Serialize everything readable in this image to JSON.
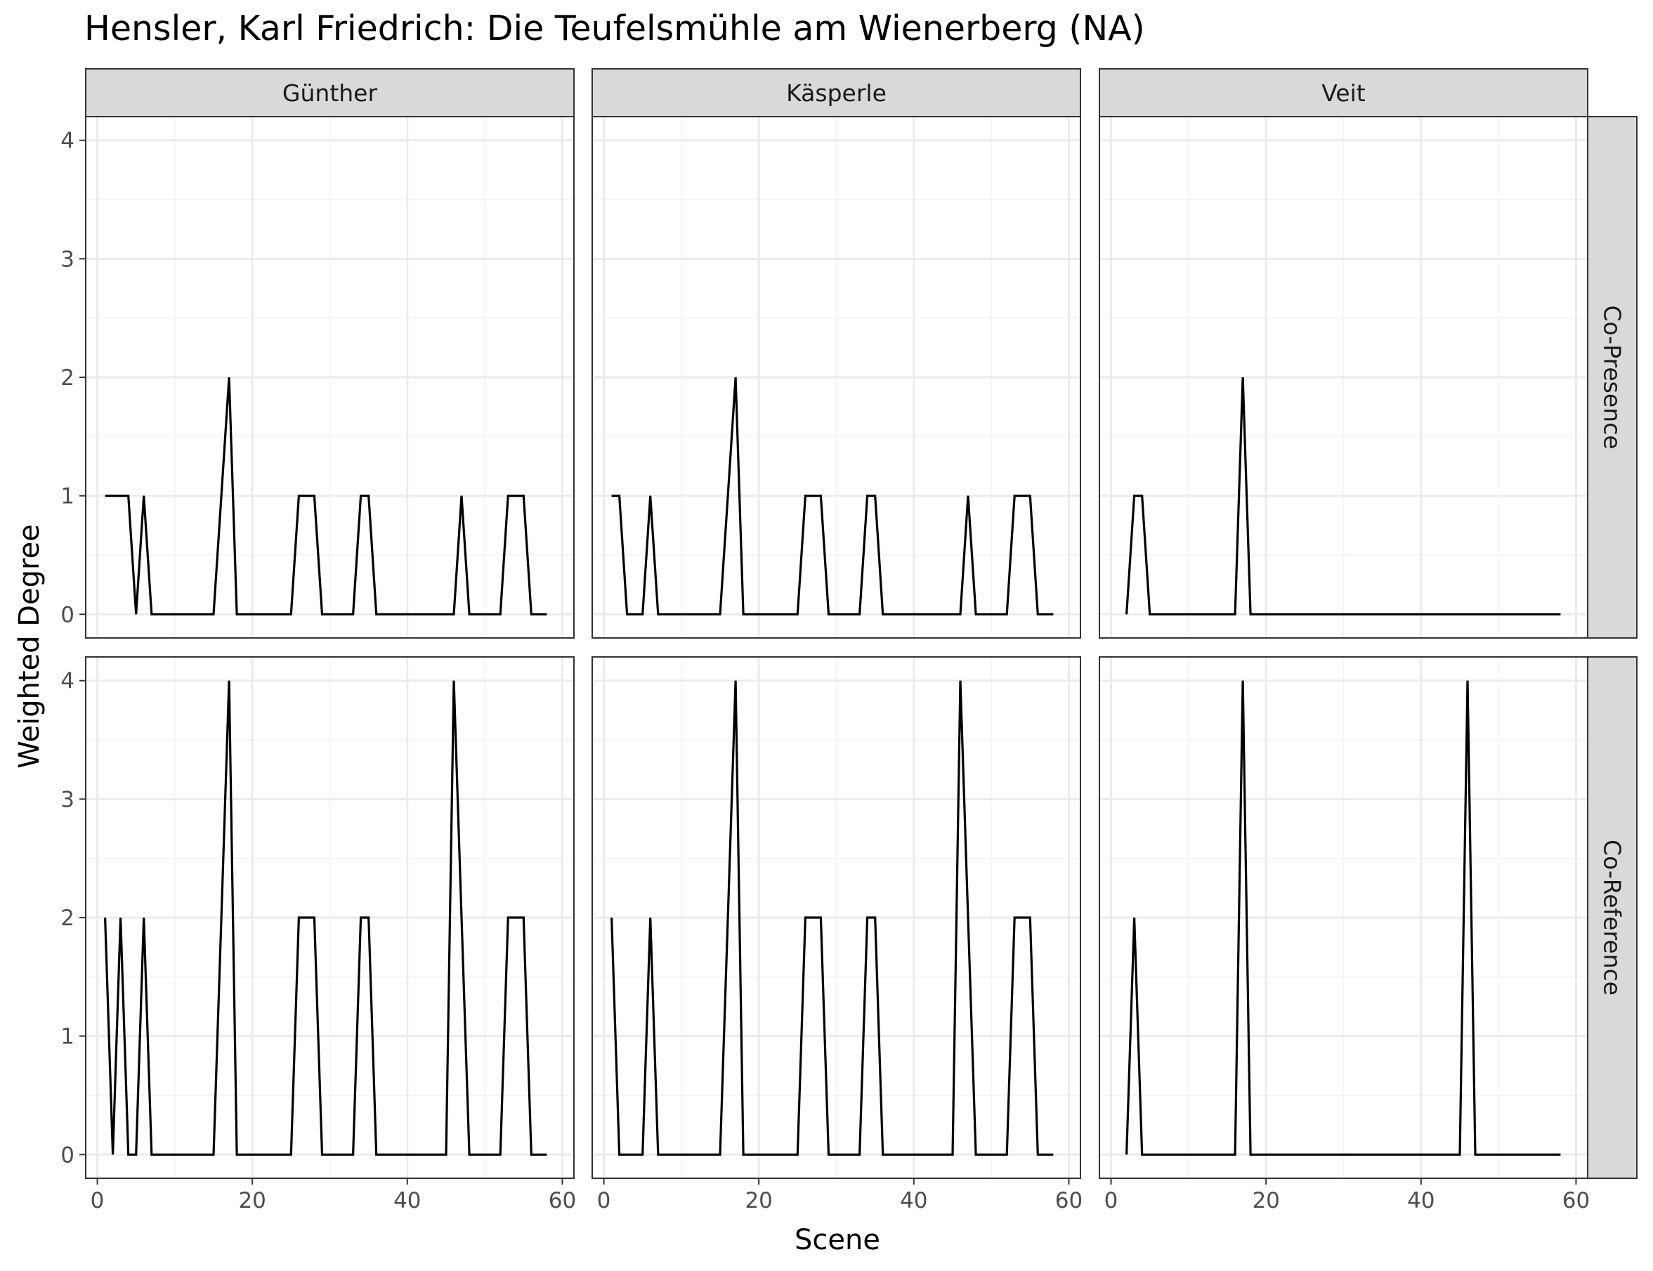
{
  "chart_data": {
    "type": "line",
    "title": "Hensler, Karl Friedrich: Die Teufelsmühle am Wienerberg (NA)",
    "xlabel": "Scene",
    "ylabel": "Weighted Degree",
    "xlim": [
      -1.5,
      61.5
    ],
    "ylim": [
      -0.2,
      4.2
    ],
    "x_ticks": [
      0,
      20,
      40,
      60
    ],
    "y_ticks": [
      0,
      1,
      2,
      3,
      4
    ],
    "grid": true,
    "column_facets": [
      "Günther",
      "Käsperle",
      "Veit"
    ],
    "row_facets": [
      "Co-Presence",
      "Co-Reference"
    ],
    "line_color": "#000000",
    "panels": [
      {
        "row": "Co-Presence",
        "column": "Günther",
        "x": [
          1,
          2,
          3,
          4,
          5,
          6,
          7,
          8,
          9,
          10,
          11,
          12,
          13,
          14,
          15,
          16,
          17,
          18,
          19,
          20,
          21,
          22,
          23,
          24,
          25,
          26,
          27,
          28,
          29,
          30,
          31,
          32,
          33,
          34,
          35,
          36,
          37,
          38,
          39,
          40,
          41,
          42,
          43,
          44,
          45,
          46,
          47,
          48,
          49,
          50,
          51,
          52,
          53,
          54,
          55,
          56,
          57,
          58
        ],
        "y": [
          1,
          1,
          1,
          1,
          0,
          1,
          0,
          0,
          0,
          0,
          0,
          0,
          0,
          0,
          0,
          1,
          2,
          0,
          0,
          0,
          0,
          0,
          0,
          0,
          0,
          1,
          1,
          1,
          0,
          0,
          0,
          0,
          0,
          1,
          1,
          0,
          0,
          0,
          0,
          0,
          0,
          0,
          0,
          0,
          0,
          0,
          1,
          0,
          0,
          0,
          0,
          0,
          1,
          1,
          1,
          0,
          0,
          0
        ]
      },
      {
        "row": "Co-Presence",
        "column": "Käsperle",
        "x": [
          1,
          2,
          3,
          4,
          5,
          6,
          7,
          8,
          9,
          10,
          11,
          12,
          13,
          14,
          15,
          16,
          17,
          18,
          19,
          20,
          21,
          22,
          23,
          24,
          25,
          26,
          27,
          28,
          29,
          30,
          31,
          32,
          33,
          34,
          35,
          36,
          37,
          38,
          39,
          40,
          41,
          42,
          43,
          44,
          45,
          46,
          47,
          48,
          49,
          50,
          51,
          52,
          53,
          54,
          55,
          56,
          57,
          58
        ],
        "y": [
          1,
          1,
          0,
          0,
          0,
          1,
          0,
          0,
          0,
          0,
          0,
          0,
          0,
          0,
          0,
          1,
          2,
          0,
          0,
          0,
          0,
          0,
          0,
          0,
          0,
          1,
          1,
          1,
          0,
          0,
          0,
          0,
          0,
          1,
          1,
          0,
          0,
          0,
          0,
          0,
          0,
          0,
          0,
          0,
          0,
          0,
          1,
          0,
          0,
          0,
          0,
          0,
          1,
          1,
          1,
          0,
          0,
          0
        ]
      },
      {
        "row": "Co-Presence",
        "column": "Veit",
        "x": [
          2,
          3,
          4,
          5,
          6,
          7,
          8,
          9,
          10,
          11,
          12,
          13,
          14,
          15,
          16,
          17,
          18,
          19,
          20,
          21,
          22,
          23,
          24,
          25,
          26,
          27,
          28,
          29,
          30,
          31,
          32,
          33,
          34,
          35,
          36,
          37,
          38,
          39,
          40,
          41,
          42,
          43,
          44,
          45,
          46,
          47,
          48,
          49,
          50,
          51,
          52,
          53,
          54,
          55,
          56,
          57,
          58
        ],
        "y": [
          0,
          1,
          1,
          0,
          0,
          0,
          0,
          0,
          0,
          0,
          0,
          0,
          0,
          0,
          0,
          2,
          0,
          0,
          0,
          0,
          0,
          0,
          0,
          0,
          0,
          0,
          0,
          0,
          0,
          0,
          0,
          0,
          0,
          0,
          0,
          0,
          0,
          0,
          0,
          0,
          0,
          0,
          0,
          0,
          0,
          0,
          0,
          0,
          0,
          0,
          0,
          0,
          0,
          0,
          0,
          0,
          0
        ]
      },
      {
        "row": "Co-Reference",
        "column": "Günther",
        "x": [
          1,
          2,
          3,
          4,
          5,
          6,
          7,
          8,
          9,
          10,
          11,
          12,
          13,
          14,
          15,
          16,
          17,
          18,
          19,
          20,
          21,
          22,
          23,
          24,
          25,
          26,
          27,
          28,
          29,
          30,
          31,
          32,
          33,
          34,
          35,
          36,
          37,
          38,
          39,
          40,
          41,
          42,
          43,
          44,
          45,
          46,
          47,
          48,
          49,
          50,
          51,
          52,
          53,
          54,
          55,
          56,
          57,
          58
        ],
        "y": [
          2,
          0,
          2,
          0,
          0,
          2,
          0,
          0,
          0,
          0,
          0,
          0,
          0,
          0,
          0,
          2,
          4,
          0,
          0,
          0,
          0,
          0,
          0,
          0,
          0,
          2,
          2,
          2,
          0,
          0,
          0,
          0,
          0,
          2,
          2,
          0,
          0,
          0,
          0,
          0,
          0,
          0,
          0,
          0,
          0,
          4,
          2,
          0,
          0,
          0,
          0,
          0,
          2,
          2,
          2,
          0,
          0,
          0
        ]
      },
      {
        "row": "Co-Reference",
        "column": "Käsperle",
        "x": [
          1,
          2,
          3,
          4,
          5,
          6,
          7,
          8,
          9,
          10,
          11,
          12,
          13,
          14,
          15,
          16,
          17,
          18,
          19,
          20,
          21,
          22,
          23,
          24,
          25,
          26,
          27,
          28,
          29,
          30,
          31,
          32,
          33,
          34,
          35,
          36,
          37,
          38,
          39,
          40,
          41,
          42,
          43,
          44,
          45,
          46,
          47,
          48,
          49,
          50,
          51,
          52,
          53,
          54,
          55,
          56,
          57,
          58
        ],
        "y": [
          2,
          0,
          0,
          0,
          0,
          2,
          0,
          0,
          0,
          0,
          0,
          0,
          0,
          0,
          0,
          2,
          4,
          0,
          0,
          0,
          0,
          0,
          0,
          0,
          0,
          2,
          2,
          2,
          0,
          0,
          0,
          0,
          0,
          2,
          2,
          0,
          0,
          0,
          0,
          0,
          0,
          0,
          0,
          0,
          0,
          4,
          2,
          0,
          0,
          0,
          0,
          0,
          2,
          2,
          2,
          0,
          0,
          0
        ]
      },
      {
        "row": "Co-Reference",
        "column": "Veit",
        "x": [
          2,
          3,
          4,
          5,
          6,
          7,
          8,
          9,
          10,
          11,
          12,
          13,
          14,
          15,
          16,
          17,
          18,
          19,
          20,
          21,
          22,
          23,
          24,
          25,
          26,
          27,
          28,
          29,
          30,
          31,
          32,
          33,
          34,
          35,
          36,
          37,
          38,
          39,
          40,
          41,
          42,
          43,
          44,
          45,
          46,
          47,
          48,
          49,
          50,
          51,
          52,
          53,
          54,
          55,
          56,
          57,
          58
        ],
        "y": [
          0,
          2,
          0,
          0,
          0,
          0,
          0,
          0,
          0,
          0,
          0,
          0,
          0,
          0,
          0,
          4,
          0,
          0,
          0,
          0,
          0,
          0,
          0,
          0,
          0,
          0,
          0,
          0,
          0,
          0,
          0,
          0,
          0,
          0,
          0,
          0,
          0,
          0,
          0,
          0,
          0,
          0,
          0,
          0,
          4,
          0,
          0,
          0,
          0,
          0,
          0,
          0,
          0,
          0,
          0,
          0,
          0
        ]
      }
    ]
  }
}
